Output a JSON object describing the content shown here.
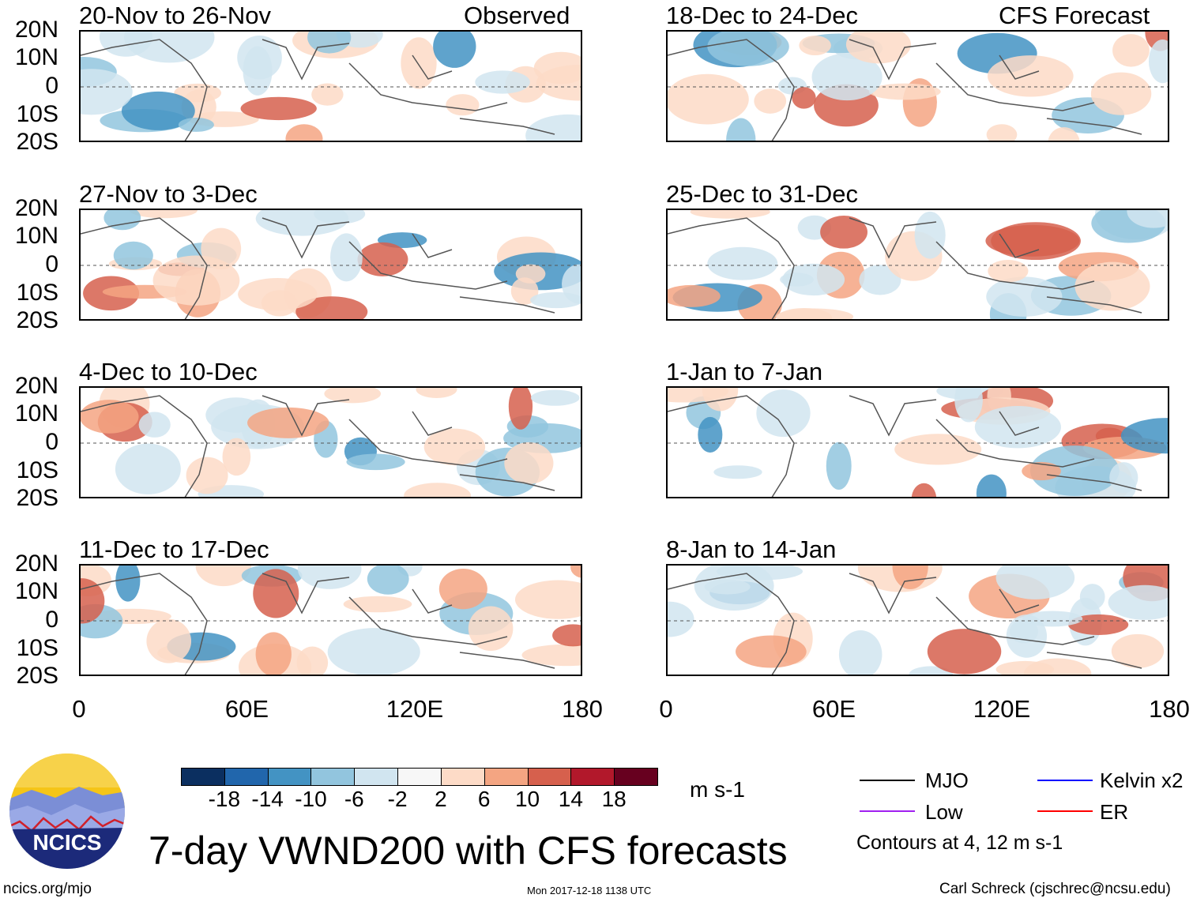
{
  "figure": {
    "title": "7-day VWND200 with CFS forecasts",
    "left_column_label": "Observed",
    "right_column_label": "CFS Forecast",
    "y_ticks": [
      "20N",
      "10N",
      "0",
      "10S",
      "20S"
    ],
    "x_ticks": [
      "0",
      "60E",
      "120E",
      "180"
    ],
    "left_panels": [
      {
        "title": "20-Nov to 26-Nov"
      },
      {
        "title": "27-Nov to 3-Dec"
      },
      {
        "title": "4-Dec to 10-Dec"
      },
      {
        "title": "11-Dec to 17-Dec"
      }
    ],
    "right_panels": [
      {
        "title": "18-Dec to 24-Dec"
      },
      {
        "title": "25-Dec to 31-Dec"
      },
      {
        "title": "1-Jan to 7-Jan"
      },
      {
        "title": "8-Jan to 14-Jan"
      }
    ]
  },
  "colorbar": {
    "labels": [
      "-18",
      "-14",
      "-10",
      "-6",
      "-2",
      "2",
      "6",
      "10",
      "14",
      "18"
    ],
    "colors": [
      "#0b2f60",
      "#2166ac",
      "#4393c3",
      "#92c5de",
      "#d1e5f0",
      "#f7f7f7",
      "#fddbc7",
      "#f4a582",
      "#d6604d",
      "#b2182b",
      "#67001f"
    ],
    "units": "m s-1"
  },
  "legend": {
    "items": [
      {
        "label": "MJO",
        "color": "#000000"
      },
      {
        "label": "Kelvin x2",
        "color": "#0000ff"
      },
      {
        "label": "Low",
        "color": "#a020f0"
      },
      {
        "label": "ER",
        "color": "#ff0000"
      }
    ],
    "note": "Contours at 4, 12 m s-1"
  },
  "logo": {
    "text": "NCICS"
  },
  "footer": {
    "url": "ncics.org/mjo",
    "timestamp": "Mon 2017-12-18 1138 UTC",
    "credit": "Carl Schreck (cjschrec@ncsu.edu)"
  }
}
